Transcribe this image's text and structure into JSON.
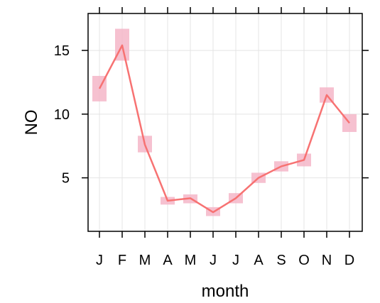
{
  "chart_data": {
    "type": "line",
    "xlabel": "month",
    "ylabel": "NO",
    "categories": [
      "J",
      "F",
      "M",
      "A",
      "M",
      "J",
      "J",
      "A",
      "S",
      "O",
      "N",
      "D"
    ],
    "yticks": [
      5,
      10,
      15
    ],
    "ylim": [
      0.8,
      17.9
    ],
    "grid": true,
    "series": [
      {
        "values": [
          12.0,
          15.4,
          7.6,
          3.2,
          3.4,
          2.3,
          3.4,
          5.0,
          5.9,
          6.4,
          11.5,
          9.3
        ],
        "color": "#f77272",
        "ci_low": [
          11.0,
          14.2,
          7.0,
          2.9,
          3.0,
          2.0,
          3.0,
          4.6,
          5.5,
          5.9,
          10.9,
          8.6
        ],
        "ci_high": [
          13.0,
          16.7,
          8.3,
          3.5,
          3.7,
          2.7,
          3.8,
          5.4,
          6.3,
          6.9,
          12.1,
          10.0
        ],
        "ci_color": "#f4b6c8"
      }
    ]
  }
}
